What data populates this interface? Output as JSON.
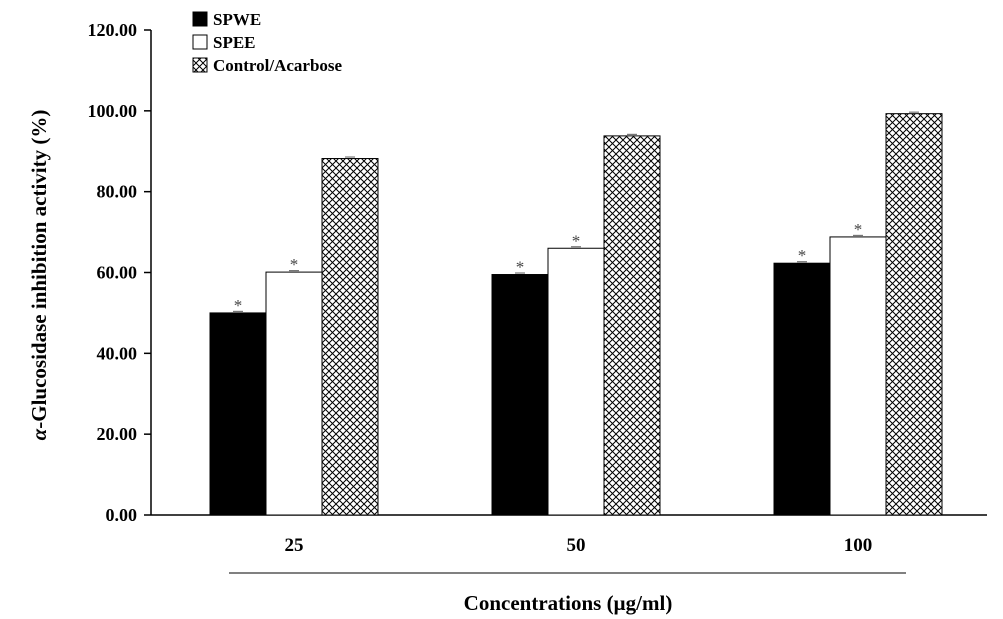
{
  "chart_data": {
    "type": "bar",
    "title": "",
    "xlabel": "Concentrations (µg/ml)",
    "ylabel_prefix": "α",
    "ylabel_rest": "-Glucosidase inhibition activity (%)",
    "ylim": [
      0,
      120
    ],
    "yticks": [
      "0.00",
      "20.00",
      "40.00",
      "60.00",
      "80.00",
      "100.00",
      "120.00"
    ],
    "categories": [
      "25",
      "50",
      "100"
    ],
    "series": [
      {
        "name": "SPWE",
        "values": [
          50.0,
          59.5,
          62.3
        ],
        "fill": "solid-black",
        "significance": [
          "*",
          "*",
          "*"
        ]
      },
      {
        "name": "SPEE",
        "values": [
          60.1,
          66.0,
          68.8
        ],
        "fill": "white",
        "significance": [
          "*",
          "*",
          "*"
        ]
      },
      {
        "name": "Control/Acarbose",
        "values": [
          88.2,
          93.8,
          99.3
        ],
        "fill": "crosshatch",
        "significance": [
          "",
          "",
          ""
        ]
      }
    ],
    "legend_position": "top-left"
  },
  "colors": {
    "axis": "#000000",
    "bar_dark": "#000000",
    "bar_light": "#ffffff",
    "hatch": "#000000",
    "star": "#444444"
  }
}
